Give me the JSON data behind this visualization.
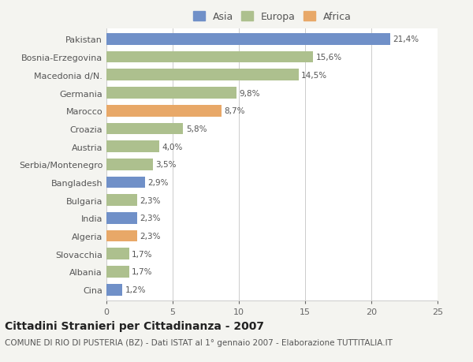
{
  "categories": [
    "Cina",
    "Albania",
    "Slovacchia",
    "Algeria",
    "India",
    "Bulgaria",
    "Bangladesh",
    "Serbia/Montenegro",
    "Austria",
    "Croazia",
    "Marocco",
    "Germania",
    "Macedonia d/N.",
    "Bosnia-Erzegovina",
    "Pakistan"
  ],
  "values": [
    1.2,
    1.7,
    1.7,
    2.3,
    2.3,
    2.3,
    2.9,
    3.5,
    4.0,
    5.8,
    8.7,
    9.8,
    14.5,
    15.6,
    21.4
  ],
  "labels": [
    "1,2%",
    "1,7%",
    "1,7%",
    "2,3%",
    "2,3%",
    "2,3%",
    "2,9%",
    "3,5%",
    "4,0%",
    "5,8%",
    "8,7%",
    "9,8%",
    "14,5%",
    "15,6%",
    "21,4%"
  ],
  "continents": [
    "Asia",
    "Europa",
    "Europa",
    "Africa",
    "Asia",
    "Europa",
    "Asia",
    "Europa",
    "Europa",
    "Europa",
    "Africa",
    "Europa",
    "Europa",
    "Europa",
    "Asia"
  ],
  "colors": {
    "Asia": "#7090c8",
    "Europa": "#adc08e",
    "Africa": "#e8a868"
  },
  "legend_order": [
    "Asia",
    "Europa",
    "Africa"
  ],
  "title": "Cittadini Stranieri per Cittadinanza - 2007",
  "subtitle": "COMUNE DI RIO DI PUSTERIA (BZ) - Dati ISTAT al 1° gennaio 2007 - Elaborazione TUTTITALIA.IT",
  "xlim": [
    0,
    25
  ],
  "xticks": [
    0,
    5,
    10,
    15,
    20,
    25
  ],
  "background_color": "#f4f4f0",
  "plot_bg_color": "#ffffff",
  "grid_color": "#cccccc",
  "title_fontsize": 10,
  "subtitle_fontsize": 7.5,
  "label_fontsize": 7.5,
  "tick_fontsize": 8,
  "legend_fontsize": 9,
  "bar_height": 0.65
}
